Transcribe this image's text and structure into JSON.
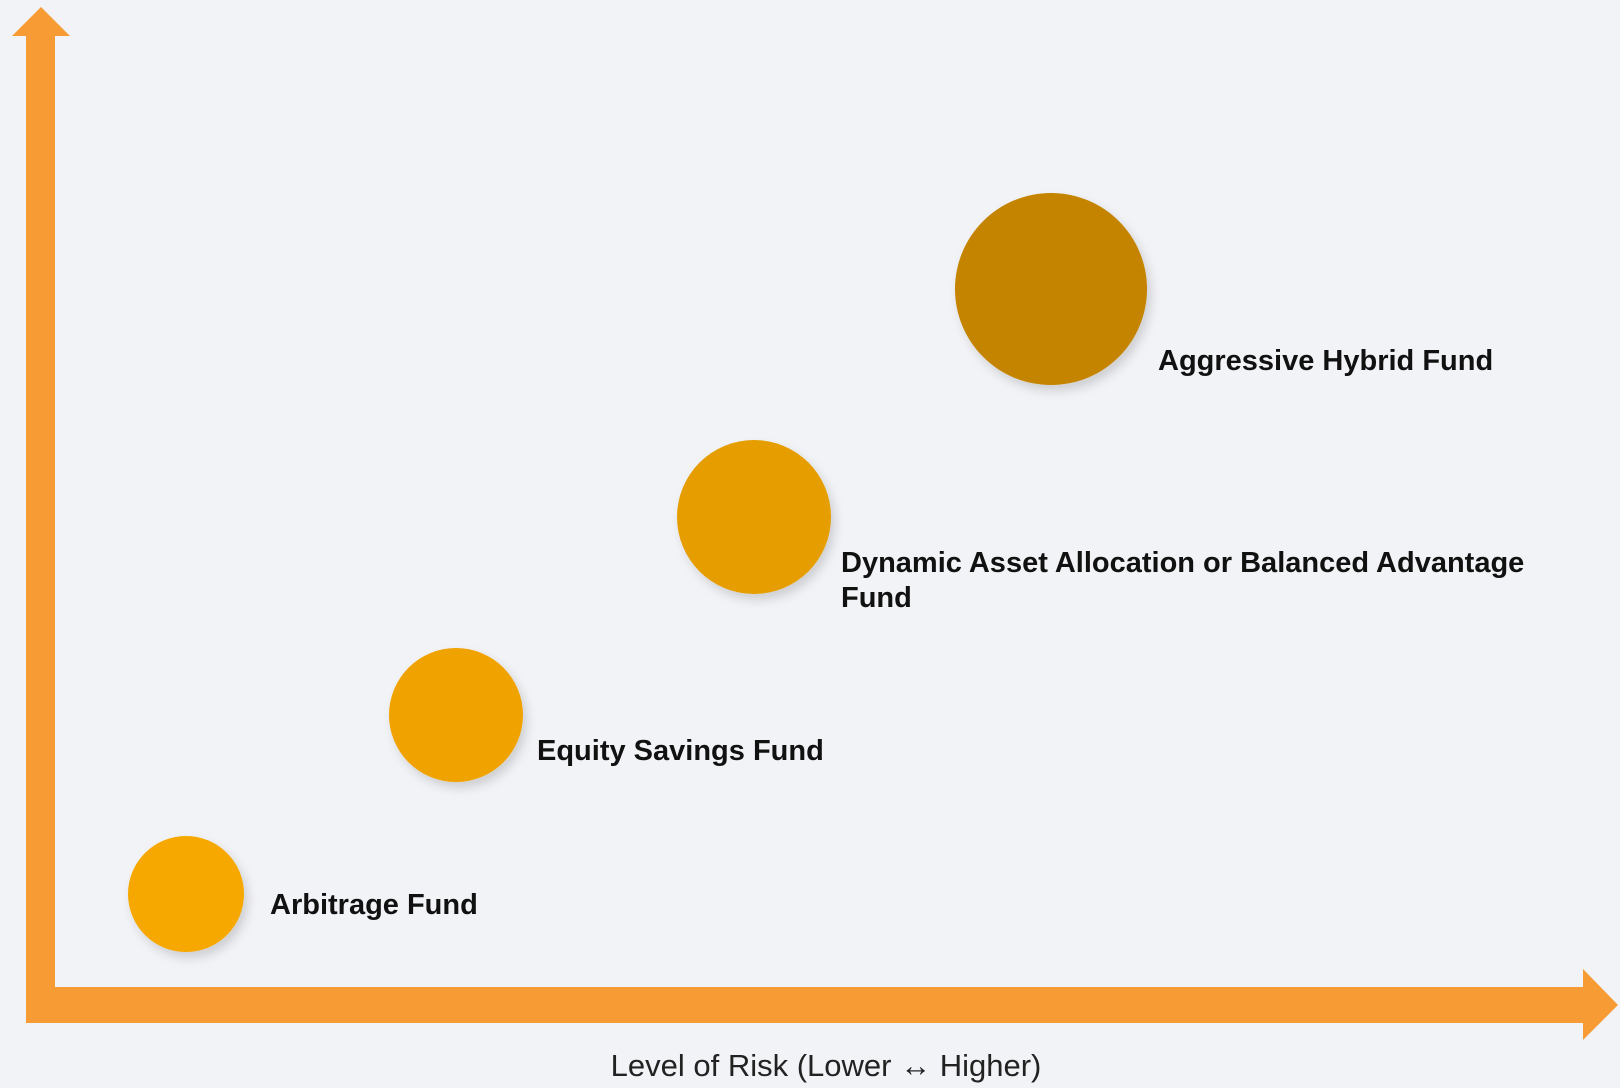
{
  "nodes": [
    {
      "label": "Arbitrage Fund"
    },
    {
      "label": "Equity Savings Fund"
    },
    {
      "label": "Dynamic Asset Allocation or Balanced Advantage Fund"
    },
    {
      "label": "Aggressive Hybrid Fund"
    }
  ],
  "axis_label": "Level of Risk (Lower ↔  Higher)"
}
